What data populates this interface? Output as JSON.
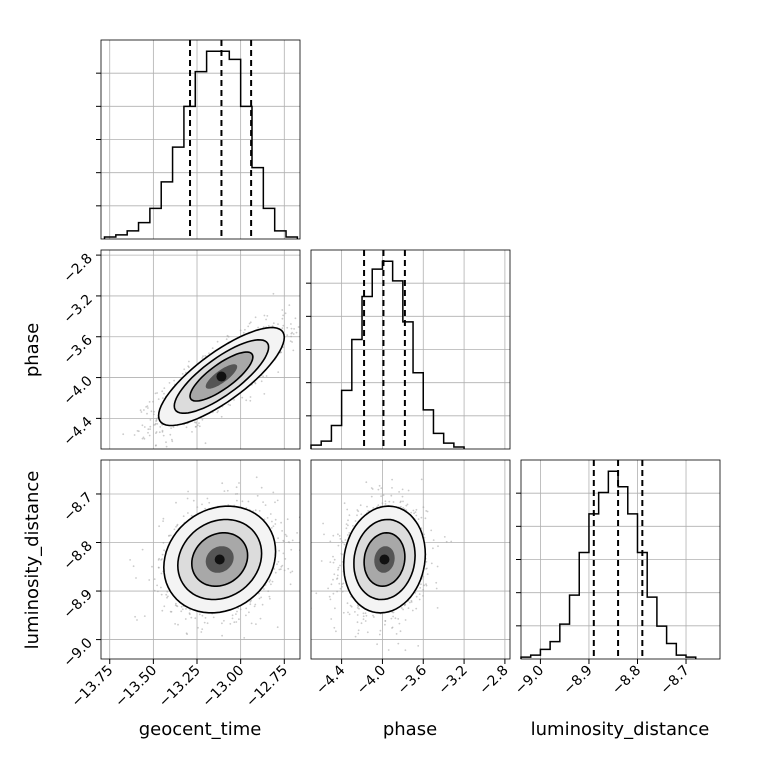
{
  "chart_data": {
    "type": "corner",
    "grid": true,
    "parameters": [
      "geocent_time",
      "phase",
      "luminosity_distance"
    ],
    "histograms": [
      {
        "parameter": "geocent_time",
        "bin_edges": [
          -13.78,
          -13.715,
          -13.65,
          -13.585,
          -13.52,
          -13.455,
          -13.39,
          -13.325,
          -13.26,
          -13.195,
          -13.13,
          -13.065,
          -13.0,
          -12.935,
          -12.87,
          -12.805,
          -12.74,
          -12.675
        ],
        "counts": [
          0.01,
          0.02,
          0.04,
          0.08,
          0.15,
          0.28,
          0.45,
          0.65,
          0.82,
          0.92,
          0.92,
          0.88,
          0.65,
          0.35,
          0.15,
          0.04,
          0.01
        ],
        "quantiles": [
          -13.29,
          -13.11,
          -12.94
        ]
      },
      {
        "parameter": "phase",
        "bin_edges": [
          -4.7,
          -4.6,
          -4.5,
          -4.4,
          -4.3,
          -4.2,
          -4.1,
          -4.0,
          -3.9,
          -3.8,
          -3.7,
          -3.6,
          -3.5,
          -3.4,
          -3.3,
          -3.2
        ],
        "counts": [
          0.02,
          0.04,
          0.12,
          0.3,
          0.56,
          0.78,
          0.92,
          0.96,
          0.86,
          0.65,
          0.39,
          0.2,
          0.08,
          0.03,
          0.01
        ],
        "quantiles": [
          -4.18,
          -3.99,
          -3.78
        ]
      },
      {
        "parameter": "luminosity_distance",
        "bin_edges": [
          -9.04,
          -9.02,
          -9.0,
          -8.98,
          -8.96,
          -8.94,
          -8.92,
          -8.9,
          -8.88,
          -8.86,
          -8.84,
          -8.82,
          -8.8,
          -8.78,
          -8.76,
          -8.74,
          -8.72,
          -8.7,
          -8.68
        ],
        "counts": [
          0.01,
          0.02,
          0.05,
          0.09,
          0.18,
          0.33,
          0.55,
          0.75,
          0.86,
          0.97,
          0.89,
          0.75,
          0.55,
          0.32,
          0.17,
          0.08,
          0.02,
          0.01
        ],
        "quantiles": [
          -8.89,
          -8.84,
          -8.79
        ]
      }
    ],
    "panels_2d": [
      {
        "x": "geocent_time",
        "y": "phase",
        "mean": [
          -13.11,
          -3.99
        ],
        "sd": [
          0.18,
          0.24
        ],
        "correlation": 0.8
      },
      {
        "x": "geocent_time",
        "y": "luminosity_distance",
        "mean": [
          -13.12,
          -8.835
        ],
        "sd": [
          0.16,
          0.055
        ],
        "correlation": 0.15
      },
      {
        "x": "phase",
        "y": "luminosity_distance",
        "mean": [
          -3.98,
          -8.835
        ],
        "sd": [
          0.2,
          0.055
        ],
        "correlation": 0.1
      }
    ],
    "axes": {
      "geocent_time": {
        "range": [
          -13.8,
          -12.66
        ],
        "ticks": [
          -13.75,
          -13.5,
          -13.25,
          -13.0,
          -12.75
        ],
        "tick_labels": [
          "−13.75",
          "−13.50",
          "−13.25",
          "−13.00",
          "−12.75"
        ]
      },
      "phase": {
        "range": [
          -4.7,
          -2.75
        ],
        "ticks": [
          -4.4,
          -4.0,
          -3.6,
          -3.2,
          -2.8
        ],
        "tick_labels": [
          "−4.4",
          "−4.0",
          "−3.6",
          "−3.2",
          "−2.8"
        ]
      },
      "luminosity_distance": {
        "range": [
          -9.04,
          -8.63
        ],
        "ticks": [
          -9.0,
          -8.9,
          -8.8,
          -8.7
        ],
        "tick_labels": [
          "−9.0",
          "−8.9",
          "−8.8",
          "−8.7"
        ]
      }
    },
    "xlabels": [
      "geocent_time",
      "phase",
      "luminosity_distance"
    ],
    "ylabels": [
      "phase",
      "luminosity_distance"
    ]
  }
}
